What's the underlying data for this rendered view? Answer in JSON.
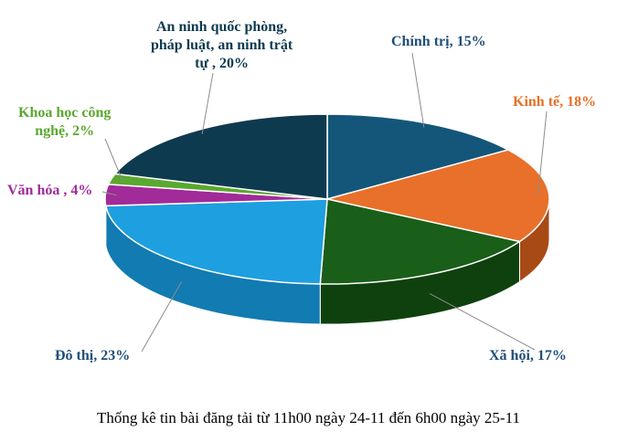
{
  "chart_data": {
    "type": "pie",
    "variant": "3d",
    "caption": "Thống kê tin bài đăng tải từ 11h00 ngày 24-11 đến 6h00 ngày 25-11",
    "slices": [
      {
        "name": "Chính trị",
        "label_text": "Chính trị, 15%",
        "value": 15,
        "color": "#14567a",
        "side_color": "#0d3d58",
        "label_color": "#1f4e79"
      },
      {
        "name": "Kinh tế",
        "label_text": "Kinh tế, 18%",
        "value": 18,
        "color": "#e8702a",
        "side_color": "#a84a16",
        "label_color": "#e8702a"
      },
      {
        "name": "Xã hội",
        "label_text": "Xã hội, 17%",
        "value": 17,
        "color": "#195e19",
        "side_color": "#0f410f",
        "label_color": "#1f4e79"
      },
      {
        "name": "Đô thị",
        "label_text": "Đô thị, 23%",
        "value": 23,
        "color": "#1e9fdf",
        "side_color": "#127bb1",
        "label_color": "#1f4e79"
      },
      {
        "name": "Văn hóa",
        "label_text": "Văn hóa , 4%",
        "value": 4,
        "color": "#a12b99",
        "side_color": "#74196e",
        "label_color": "#a12b99"
      },
      {
        "name": "Khoa học công nghệ",
        "label_text": [
          "Khoa học công",
          "nghệ, 2%"
        ],
        "value": 2,
        "color": "#5aa82f",
        "side_color": "#3d7a1d",
        "label_color": "#5aa82f"
      },
      {
        "name": "An ninh quốc phòng, pháp luật, an ninh trật tự",
        "label_text": [
          "An ninh quốc phòng,",
          "pháp luật, an ninh trật",
          "tự , 20%"
        ],
        "value": 20,
        "color": "#0e3a4f",
        "side_color": "#082634",
        "label_color": "#0e3a4f"
      }
    ]
  }
}
